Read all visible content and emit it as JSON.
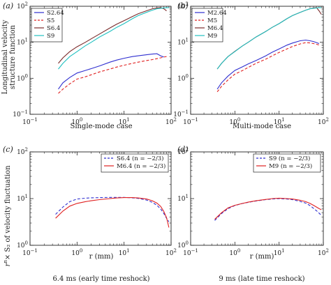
{
  "chart_data": [
    {
      "panel": "(a)",
      "type": "line",
      "xscale": "log",
      "yscale": "log",
      "xlim": [
        0.1,
        100
      ],
      "ylim": [
        0.1,
        100
      ],
      "xlabel": "",
      "ylabel": "Longitudinal velocity structure function",
      "caption": "Single-mode case",
      "legend": "top-left",
      "series": [
        {
          "name": "S2.64",
          "color": "#2f2fd0",
          "dash": "solid",
          "x": [
            0.4,
            0.5,
            0.7,
            1.0,
            1.5,
            2,
            3,
            5,
            7,
            10,
            15,
            20,
            30,
            40,
            50,
            60,
            70
          ],
          "y": [
            0.5,
            0.75,
            1.05,
            1.4,
            1.65,
            1.85,
            2.2,
            2.8,
            3.2,
            3.6,
            4.0,
            4.2,
            4.5,
            4.7,
            4.8,
            4.2,
            3.9
          ]
        },
        {
          "name": "S5",
          "color": "#e02020",
          "dash": "dash",
          "x": [
            0.4,
            0.5,
            0.7,
            1.0,
            1.5,
            2,
            3,
            5,
            7,
            10,
            15,
            20,
            30,
            40,
            50,
            60,
            70,
            80
          ],
          "y": [
            0.38,
            0.5,
            0.7,
            0.95,
            1.1,
            1.25,
            1.5,
            1.8,
            2.05,
            2.3,
            2.6,
            2.8,
            3.1,
            3.3,
            3.5,
            3.7,
            3.9,
            4.0
          ]
        },
        {
          "name": "S6.4",
          "color": "#7a2a2a",
          "dash": "solid",
          "x": [
            0.4,
            0.5,
            0.7,
            1.0,
            1.5,
            2,
            3,
            5,
            7,
            10,
            15,
            20,
            30,
            40,
            50,
            60,
            70,
            80
          ],
          "y": [
            2.6,
            3.7,
            5.5,
            7.5,
            10,
            12.5,
            17,
            25,
            32,
            40,
            52,
            62,
            75,
            85,
            90,
            92,
            85,
            75
          ]
        },
        {
          "name": "S9",
          "color": "#20c0c0",
          "dash": "solid",
          "x": [
            0.4,
            0.5,
            0.7,
            1.0,
            1.5,
            2,
            3,
            5,
            7,
            10,
            15,
            20,
            30,
            40,
            50,
            60,
            70,
            80,
            90
          ],
          "y": [
            1.8,
            2.6,
            4.0,
            5.5,
            8,
            10,
            14,
            20,
            26,
            33,
            45,
            55,
            68,
            78,
            85,
            88,
            90,
            91,
            92
          ]
        }
      ]
    },
    {
      "panel": "(b)",
      "type": "line",
      "xscale": "log",
      "yscale": "log",
      "xlim": [
        0.1,
        100
      ],
      "ylim": [
        0.1,
        100
      ],
      "xlabel": "",
      "ylabel": "",
      "caption": "Multi-mode case",
      "legend": "top-left",
      "series": [
        {
          "name": "M2.64",
          "color": "#2f2fd0",
          "dash": "solid",
          "x": [
            0.4,
            0.5,
            0.7,
            1.0,
            1.5,
            2,
            3,
            5,
            7,
            10,
            15,
            20,
            30,
            40,
            50,
            60,
            70,
            80
          ],
          "y": [
            0.5,
            0.75,
            1.15,
            1.65,
            2.1,
            2.5,
            3.1,
            4.2,
            5.3,
            6.5,
            8.3,
            9.5,
            11,
            11.5,
            11,
            10.5,
            9.8,
            9.2
          ]
        },
        {
          "name": "M5",
          "color": "#e02020",
          "dash": "dash",
          "x": [
            0.4,
            0.5,
            0.7,
            1.0,
            1.5,
            2,
            3,
            5,
            7,
            10,
            15,
            20,
            30,
            40,
            50,
            60,
            70,
            80
          ],
          "y": [
            0.42,
            0.6,
            0.9,
            1.3,
            1.65,
            2.0,
            2.6,
            3.4,
            4.2,
            5.2,
            6.5,
            7.6,
            9,
            9.8,
            9.6,
            9.2,
            8.8,
            8.4
          ]
        },
        {
          "name": "M6.4",
          "color": "#7a2a2a",
          "dash": "solid",
          "x": [
            0.4,
            0.5,
            0.7,
            1.0,
            1.5,
            2,
            3,
            5,
            7,
            10,
            15,
            20,
            30,
            40,
            50,
            60,
            70,
            80,
            90
          ],
          "y": [
            1.8,
            2.6,
            4.0,
            5.6,
            8,
            10,
            14,
            20,
            26,
            33,
            45,
            55,
            68,
            78,
            85,
            90,
            92,
            75,
            60
          ]
        },
        {
          "name": "M9",
          "color": "#20c0c0",
          "dash": "solid",
          "x": [
            0.4,
            0.5,
            0.7,
            1.0,
            1.5,
            2,
            3,
            5,
            7,
            10,
            15,
            20,
            30,
            40,
            50,
            60,
            70,
            80,
            90
          ],
          "y": [
            1.8,
            2.6,
            4.0,
            5.5,
            8,
            10,
            14,
            20,
            26,
            33,
            45,
            55,
            68,
            78,
            85,
            88,
            90,
            91,
            92
          ]
        }
      ]
    },
    {
      "panel": "(c)",
      "type": "line",
      "xscale": "log",
      "yscale": "log",
      "xlim": [
        0.1,
        100
      ],
      "ylim": [
        1,
        100
      ],
      "xlabel": "r (mm)",
      "ylabel": "r^n × S2 of velocity fluctuation",
      "caption": "6.4 ms (early time reshock)",
      "legend": "top-right",
      "series": [
        {
          "name": "S6.4",
          "nlabel": "(n = −2/3)",
          "color": "#2f2fd0",
          "dash": "dash",
          "x": [
            0.35,
            0.5,
            0.7,
            1.0,
            1.5,
            2,
            3,
            5,
            7,
            10,
            15,
            20,
            30,
            40,
            50,
            60,
            70,
            80,
            90
          ],
          "y": [
            4.6,
            6.6,
            8.6,
            9.8,
            10.2,
            10.4,
            10.5,
            10.6,
            10.6,
            10.6,
            10.4,
            10.1,
            9.3,
            8.3,
            7.2,
            6.0,
            4.8,
            3.8,
            3.2
          ]
        },
        {
          "name": "M6.4",
          "nlabel": "(n = −2/3)",
          "color": "#e02020",
          "dash": "solid",
          "x": [
            0.35,
            0.5,
            0.7,
            1.0,
            1.5,
            2,
            3,
            5,
            7,
            10,
            15,
            20,
            30,
            40,
            50,
            60,
            70,
            80,
            90
          ],
          "y": [
            3.8,
            5.4,
            6.9,
            7.9,
            8.6,
            9.0,
            9.5,
            10.0,
            10.3,
            10.5,
            10.5,
            10.3,
            9.8,
            9.0,
            8.0,
            6.8,
            5.3,
            3.9,
            2.4
          ]
        }
      ]
    },
    {
      "panel": "(d)",
      "type": "line",
      "xscale": "log",
      "yscale": "log",
      "xlim": [
        0.1,
        100
      ],
      "ylim": [
        1,
        100
      ],
      "xlabel": "r (mm)",
      "ylabel": "",
      "caption": "9 ms (late time reshock)",
      "legend": "top-right",
      "series": [
        {
          "name": "S9",
          "nlabel": "(n = −2/3)",
          "color": "#2f2fd0",
          "dash": "dash",
          "x": [
            0.35,
            0.5,
            0.7,
            1.0,
            1.5,
            2,
            3,
            5,
            7,
            10,
            15,
            20,
            30,
            40,
            50,
            60,
            70,
            80,
            90
          ],
          "y": [
            3.4,
            4.8,
            6.1,
            7.1,
            7.9,
            8.3,
            8.9,
            9.5,
            9.8,
            10.0,
            9.8,
            9.5,
            8.7,
            8.0,
            7.1,
            6.2,
            5.5,
            4.9,
            4.4
          ]
        },
        {
          "name": "M9",
          "nlabel": "(n = −2/3)",
          "color": "#e02020",
          "dash": "solid",
          "x": [
            0.35,
            0.5,
            0.7,
            1.0,
            1.5,
            2,
            3,
            5,
            7,
            10,
            15,
            20,
            30,
            40,
            50,
            60,
            70,
            80,
            90
          ],
          "y": [
            3.6,
            5.0,
            6.3,
            7.2,
            7.9,
            8.4,
            9.0,
            9.6,
            10.0,
            10.2,
            10.0,
            9.8,
            9.2,
            8.6,
            7.9,
            7.2,
            6.6,
            6.1,
            5.8
          ]
        }
      ]
    }
  ],
  "texts": {
    "panel_a": "(a)",
    "panel_b": "(b)",
    "panel_c": "(c)",
    "panel_d": "(d)",
    "ylabel_top_1": "Longitudinal velocity",
    "ylabel_top_2": "structure function",
    "ylabel_bottom": "× S₂ of velocity fluctuation",
    "ylabel_bottom_r": "r",
    "ylabel_bottom_n": "n",
    "xlabel_c": "r (mm)",
    "xlabel_d": "r (mm)",
    "caption_a": "Single-mode case",
    "caption_b": "Multi-mode case",
    "caption_c": "6.4 ms (early time reshock)",
    "caption_d": "9 ms (late time reshock)",
    "nlabel": "(n = −2/3)"
  }
}
